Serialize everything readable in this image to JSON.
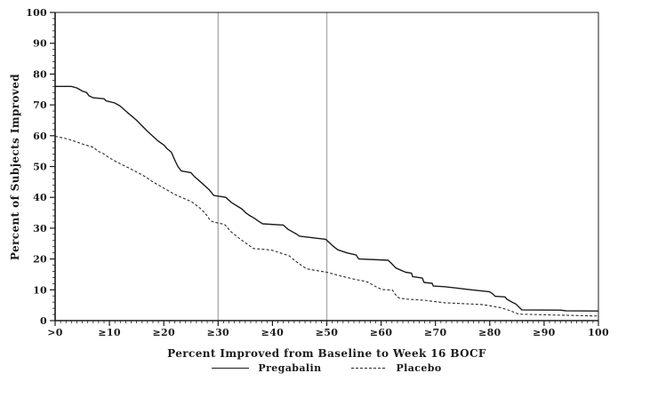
{
  "chart_data": {
    "type": "line",
    "title": "",
    "xlabel": "Percent Improved from Baseline to Week 16 BOCF",
    "ylabel": "Percent of Subjects Improved",
    "xlim": [
      0,
      100
    ],
    "ylim": [
      0,
      100
    ],
    "x_major_ticks": [
      0,
      10,
      20,
      30,
      40,
      50,
      60,
      70,
      80,
      90,
      100
    ],
    "x_tick_labels": [
      ">0",
      "≥10",
      "≥20",
      "≥30",
      "≥40",
      "≥50",
      "≥60",
      "≥70",
      "≥80",
      "≥90",
      "100"
    ],
    "y_major_ticks": [
      0,
      10,
      20,
      30,
      40,
      50,
      60,
      70,
      80,
      90,
      100
    ],
    "y_tick_labels": [
      "0",
      "10",
      "20",
      "30",
      "40",
      "50",
      "60",
      "70",
      "80",
      "90",
      "100"
    ],
    "x_minor_tick_step": 1,
    "y_minor_tick_step": 2,
    "grid": "off",
    "legend_position": "bottom-center",
    "reference_lines_x": [
      30,
      50
    ],
    "colors": {
      "series": "#1a1a1a",
      "dashed_series": "#2a2a2a",
      "reference_line": "#a9a9a9",
      "axis": "#1a1a1a",
      "background": "#ffffff"
    },
    "series": [
      {
        "name": "Pregabalin",
        "line_style": "solid",
        "points": [
          [
            0,
            76
          ],
          [
            3,
            76
          ],
          [
            4,
            75.5
          ],
          [
            5,
            74.5
          ],
          [
            5.8,
            74
          ],
          [
            6.2,
            73
          ],
          [
            7,
            72.3
          ],
          [
            9,
            72
          ],
          [
            9.4,
            71.3
          ],
          [
            11,
            70.6
          ],
          [
            12,
            69.6
          ],
          [
            13,
            68
          ],
          [
            14,
            66.5
          ],
          [
            15,
            65
          ],
          [
            16,
            63.2
          ],
          [
            17,
            61.4
          ],
          [
            18,
            59.8
          ],
          [
            19,
            58.2
          ],
          [
            20,
            57
          ],
          [
            20.6,
            55.8
          ],
          [
            21.4,
            54.6
          ],
          [
            22,
            52.2
          ],
          [
            22.6,
            50
          ],
          [
            23.2,
            48.6
          ],
          [
            25,
            48
          ],
          [
            25.6,
            46.8
          ],
          [
            26.4,
            45.6
          ],
          [
            27.4,
            44
          ],
          [
            28.4,
            42.4
          ],
          [
            29.2,
            40.6
          ],
          [
            31.4,
            40
          ],
          [
            32.4,
            38.4
          ],
          [
            33.4,
            37.3
          ],
          [
            34.4,
            36.2
          ],
          [
            35.2,
            34.8
          ],
          [
            35.9,
            34
          ],
          [
            36.7,
            33.2
          ],
          [
            37.5,
            32.2
          ],
          [
            38.2,
            31.4
          ],
          [
            42,
            31
          ],
          [
            42.9,
            29.6
          ],
          [
            44.3,
            28.2
          ],
          [
            45,
            27.4
          ],
          [
            49.8,
            26.4
          ],
          [
            51,
            24.4
          ],
          [
            52,
            23
          ],
          [
            53.7,
            22
          ],
          [
            55.4,
            21.3
          ],
          [
            55.9,
            20
          ],
          [
            61.3,
            19.6
          ],
          [
            61.9,
            18.6
          ],
          [
            62.7,
            17.1
          ],
          [
            64.5,
            15.7
          ],
          [
            65.6,
            15.4
          ],
          [
            65.8,
            14.3
          ],
          [
            67.6,
            13.8
          ],
          [
            67.9,
            12.4
          ],
          [
            69.4,
            12.1
          ],
          [
            69.6,
            11.2
          ],
          [
            71.7,
            11
          ],
          [
            76.6,
            10
          ],
          [
            79.9,
            9.4
          ],
          [
            80.4,
            8.9
          ],
          [
            81,
            7.9
          ],
          [
            82.8,
            7.7
          ],
          [
            83.2,
            6.9
          ],
          [
            84.2,
            5.9
          ],
          [
            84.8,
            5.4
          ],
          [
            85.9,
            3.5
          ],
          [
            93,
            3.4
          ],
          [
            94,
            3.2
          ],
          [
            100,
            3.1
          ]
        ]
      },
      {
        "name": "Placebo",
        "line_style": "dashed",
        "points": [
          [
            0,
            59.8
          ],
          [
            2.2,
            59
          ],
          [
            3.8,
            58.1
          ],
          [
            5.4,
            57.1
          ],
          [
            7.1,
            56.2
          ],
          [
            7.9,
            54.9
          ],
          [
            8.7,
            54.4
          ],
          [
            9.8,
            53
          ],
          [
            11.2,
            51.6
          ],
          [
            12.8,
            50.2
          ],
          [
            14.4,
            48.8
          ],
          [
            16.1,
            47.2
          ],
          [
            17,
            46.2
          ],
          [
            18,
            45
          ],
          [
            19,
            44
          ],
          [
            20,
            43
          ],
          [
            21,
            42
          ],
          [
            22,
            41
          ],
          [
            23,
            40.2
          ],
          [
            24,
            39.4
          ],
          [
            25.1,
            38.6
          ],
          [
            26,
            37.4
          ],
          [
            27,
            36
          ],
          [
            28,
            34
          ],
          [
            28.6,
            32.4
          ],
          [
            29.2,
            32
          ],
          [
            31.2,
            31.2
          ],
          [
            32.4,
            28.8
          ],
          [
            34.1,
            26.4
          ],
          [
            35.7,
            24.4
          ],
          [
            36.5,
            23.4
          ],
          [
            39.8,
            22.9
          ],
          [
            41.4,
            22
          ],
          [
            43.1,
            21
          ],
          [
            44.7,
            18.7
          ],
          [
            45.5,
            17.7
          ],
          [
            46.3,
            16.8
          ],
          [
            50,
            15.7
          ],
          [
            52.1,
            14.7
          ],
          [
            53.7,
            14
          ],
          [
            55.4,
            13.3
          ],
          [
            57,
            12.8
          ],
          [
            57.8,
            12.3
          ],
          [
            58.6,
            11.4
          ],
          [
            59.4,
            10.7
          ],
          [
            60.2,
            10.1
          ],
          [
            62.1,
            9.9
          ],
          [
            62.6,
            8.5
          ],
          [
            63.2,
            7.4
          ],
          [
            64.5,
            7
          ],
          [
            68,
            6.6
          ],
          [
            71.7,
            5.8
          ],
          [
            78.8,
            5.2
          ],
          [
            80.4,
            4.7
          ],
          [
            82,
            4.2
          ],
          [
            83.6,
            3.3
          ],
          [
            84.8,
            2.5
          ],
          [
            85.3,
            2.1
          ],
          [
            90,
            1.9
          ],
          [
            95,
            1.7
          ],
          [
            100,
            1.5
          ]
        ]
      }
    ]
  }
}
